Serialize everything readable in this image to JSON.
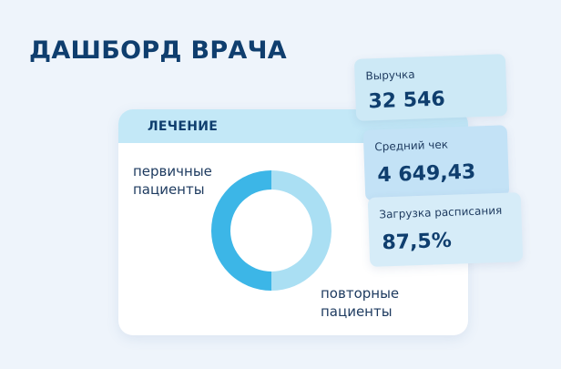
{
  "dashboard": {
    "title": "ДАШБОРД ВРАЧА"
  },
  "treatment": {
    "title": "ЛЕЧЕНИЕ",
    "legend": [
      {
        "line1": "первичные",
        "line2": "пациенты"
      },
      {
        "line1": "повторные",
        "line2": "пациенты"
      }
    ]
  },
  "metrics": {
    "revenue": {
      "label": "Выручка",
      "value": "32 546"
    },
    "avg_check": {
      "label": "Средний чек",
      "value": "4 649,43"
    },
    "schedule_load": {
      "label": "Загрузка расписания",
      "value": "87,5%"
    }
  },
  "chart_data": {
    "type": "pie",
    "categories": [
      "первичные пациенты",
      "повторные пациенты"
    ],
    "values": [
      50,
      50
    ],
    "colors": [
      "#3cb6e7",
      "#aadff3"
    ]
  }
}
